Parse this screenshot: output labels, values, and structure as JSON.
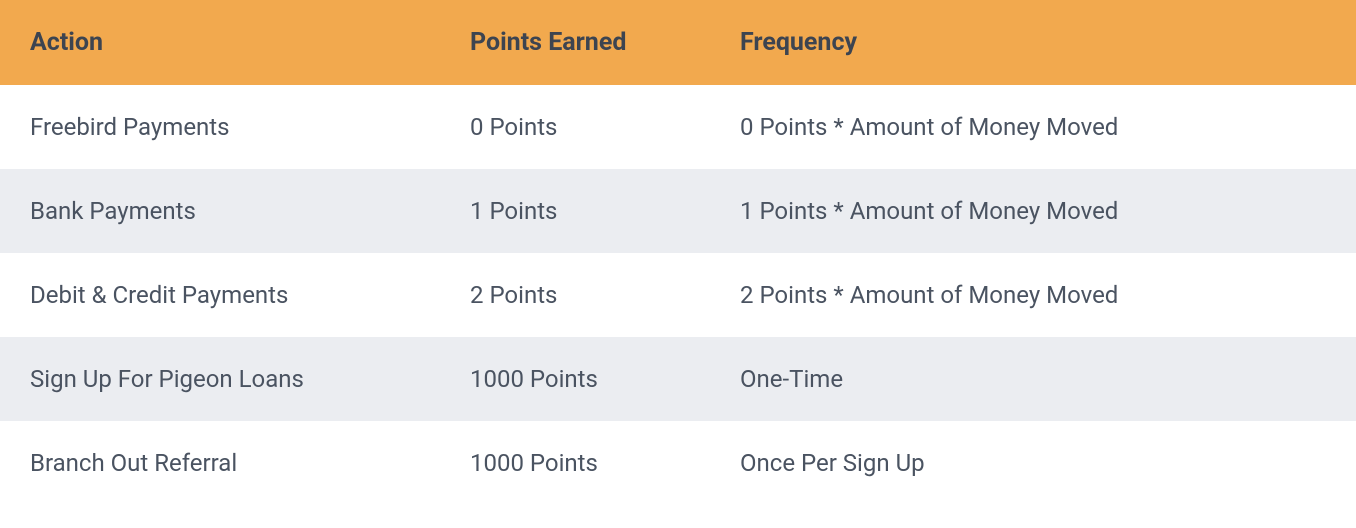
{
  "table": {
    "header_bg": "#f2a94e",
    "alt_row_bg": "#ebedf1",
    "text_color": "#4a5361",
    "header_text_color": "#3d4450",
    "columns": [
      {
        "key": "action",
        "label": "Action"
      },
      {
        "key": "points",
        "label": "Points Earned"
      },
      {
        "key": "frequency",
        "label": "Frequency"
      }
    ],
    "rows": [
      {
        "action": "Freebird Payments",
        "points": "0 Points",
        "frequency": "0 Points * Amount of Money Moved"
      },
      {
        "action": "Bank Payments",
        "points": "1 Points",
        "frequency": "1 Points * Amount of Money Moved"
      },
      {
        "action": "Debit & Credit Payments",
        "points": "2 Points",
        "frequency": "2 Points * Amount of Money Moved"
      },
      {
        "action": "Sign Up For Pigeon Loans",
        "points": "1000 Points",
        "frequency": "One-Time"
      },
      {
        "action": "Branch Out Referral",
        "points": "1000 Points",
        "frequency": "Once Per Sign Up"
      }
    ]
  }
}
